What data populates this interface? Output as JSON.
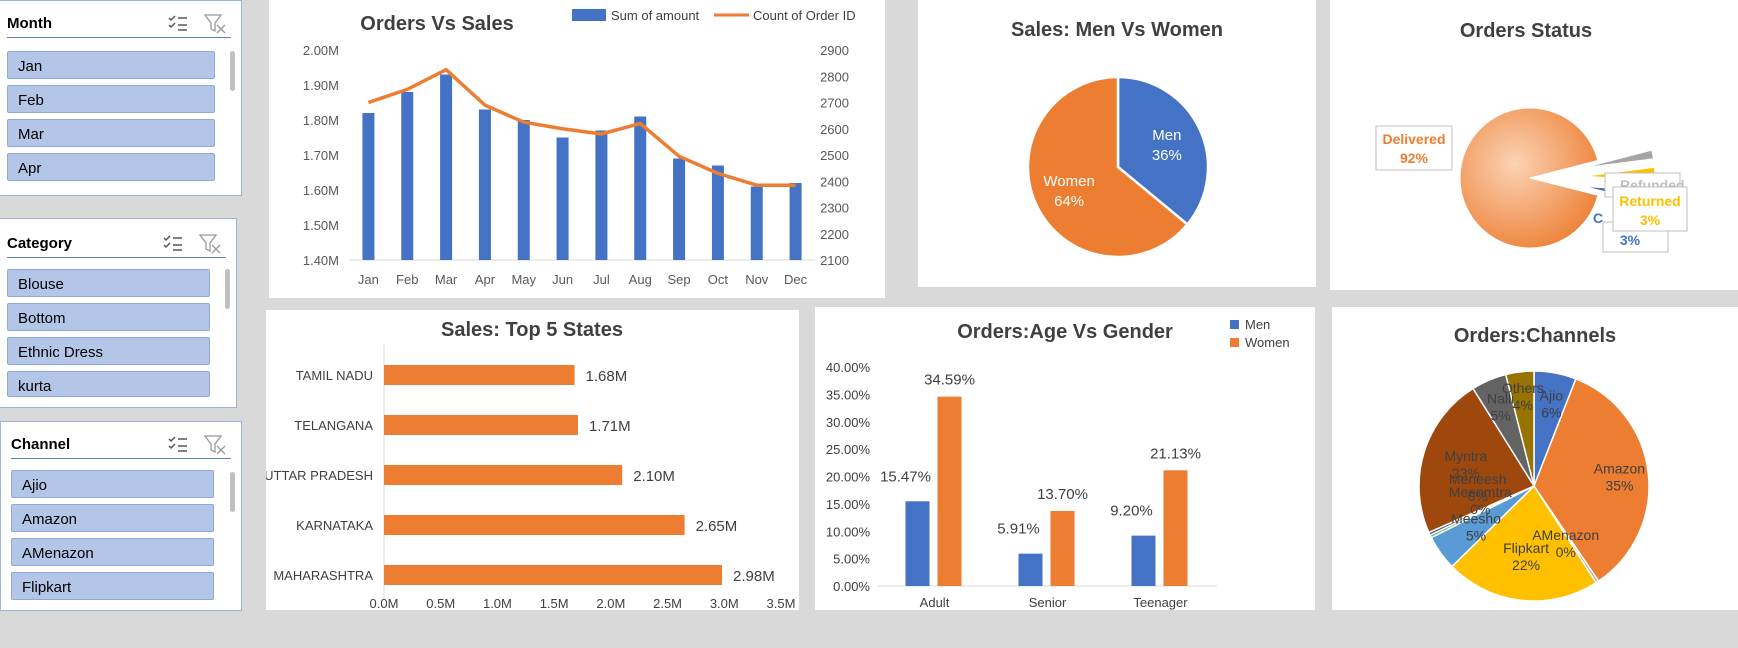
{
  "slicers": {
    "month": {
      "title": "Month",
      "items": [
        "Jan",
        "Feb",
        "Mar",
        "Apr"
      ]
    },
    "category": {
      "title": "Category",
      "items": [
        "Blouse",
        "Bottom",
        "Ethnic Dress",
        "kurta"
      ]
    },
    "channel": {
      "title": "Channel",
      "items": [
        "Ajio",
        "Amazon",
        "AMenazon",
        "Flipkart"
      ]
    },
    "icons": {
      "multi_select": "multi-select-icon",
      "clear_filter": "clear-filter-icon"
    }
  },
  "colors": {
    "blue": "#4472c4",
    "orange": "#ed7d31",
    "gold": "#ffc000",
    "gray": "#a5a5a5",
    "dark_orange": "#9e480e",
    "light_blue": "#5b9bd5",
    "dark_gray": "#636363",
    "olive": "#997300"
  },
  "chart_data": [
    {
      "id": "orders_vs_sales",
      "type": "bar+line",
      "title": "Orders Vs Sales",
      "categories": [
        "Jan",
        "Feb",
        "Mar",
        "Apr",
        "May",
        "Jun",
        "Jul",
        "Aug",
        "Sep",
        "Oct",
        "Nov",
        "Dec"
      ],
      "series": [
        {
          "name": "Sum of amount",
          "type": "bar",
          "axis": "left",
          "values": [
            1.82,
            1.88,
            1.93,
            1.83,
            1.8,
            1.75,
            1.77,
            1.81,
            1.69,
            1.67,
            1.61,
            1.62
          ]
        },
        {
          "name": "Count of Order ID",
          "type": "line",
          "axis": "right",
          "values": [
            2700,
            2750,
            2825,
            2690,
            2625,
            2600,
            2580,
            2620,
            2495,
            2430,
            2385,
            2385
          ]
        }
      ],
      "y_left": {
        "ticks": [
          "1.40M",
          "1.50M",
          "1.60M",
          "1.70M",
          "1.80M",
          "1.90M",
          "2.00M"
        ],
        "lim": [
          1.4,
          2.0
        ]
      },
      "y_right": {
        "ticks": [
          "2100",
          "2200",
          "2300",
          "2400",
          "2500",
          "2600",
          "2700",
          "2800",
          "2900"
        ],
        "lim": [
          2100,
          2900
        ]
      },
      "legend": "top-right"
    },
    {
      "id": "sales_gender",
      "type": "pie",
      "title": "Sales: Men Vs Women",
      "slices": [
        {
          "label": "Men",
          "value": 36,
          "text": "36%",
          "color": "#4472c4"
        },
        {
          "label": "Women",
          "value": 64,
          "text": "64%",
          "color": "#ed7d31"
        }
      ]
    },
    {
      "id": "orders_status",
      "type": "pie",
      "title": "Orders Status",
      "slices": [
        {
          "label": "Delivered",
          "value": 92,
          "text": "92%",
          "color": "#ed7d31"
        },
        {
          "label": "Refunded",
          "value": 2,
          "text": "",
          "color": "#a5a5a5"
        },
        {
          "label": "Returned",
          "value": 3,
          "text": "3%",
          "color": "#ffc000"
        },
        {
          "label": "C",
          "value": 3,
          "text": "3%",
          "color": "#4472c4"
        }
      ]
    },
    {
      "id": "top5_states",
      "type": "bar",
      "orientation": "horizontal",
      "title": "Sales: Top 5 States",
      "categories": [
        "TAMIL NADU",
        "TELANGANA",
        "UTTAR PRADESH",
        "KARNATAKA",
        "MAHARASHTRA"
      ],
      "values": [
        1.68,
        1.71,
        2.1,
        2.65,
        2.98
      ],
      "labels": [
        "1.68M",
        "1.71M",
        "2.10M",
        "2.65M",
        "2.98M"
      ],
      "x_ticks": [
        "0.0M",
        "0.5M",
        "1.0M",
        "1.5M",
        "2.0M",
        "2.5M",
        "3.0M",
        "3.5M"
      ],
      "xlim": [
        0,
        3.5
      ]
    },
    {
      "id": "age_gender",
      "type": "bar",
      "title": "Orders:Age Vs Gender",
      "categories": [
        "Adult",
        "Senior",
        "Teenager"
      ],
      "series": [
        {
          "name": "Men",
          "values": [
            15.47,
            5.91,
            9.2
          ],
          "labels": [
            "15.47%",
            "5.91%",
            "9.20%"
          ]
        },
        {
          "name": "Women",
          "values": [
            34.59,
            13.7,
            21.13
          ],
          "labels": [
            "34.59%",
            "13.70%",
            "21.13%"
          ]
        }
      ],
      "y_ticks": [
        "0.00%",
        "5.00%",
        "10.00%",
        "15.00%",
        "20.00%",
        "25.00%",
        "30.00%",
        "35.00%",
        "40.00%"
      ],
      "ylim": [
        0,
        40
      ],
      "legend": "top-right"
    },
    {
      "id": "channels",
      "type": "pie",
      "title": "Orders:Channels",
      "slices": [
        {
          "label": "Ajio",
          "value": 6,
          "text": "6%",
          "color": "#4472c4"
        },
        {
          "label": "Amazon",
          "value": 35,
          "text": "35%",
          "color": "#ed7d31"
        },
        {
          "label": "AMenazon",
          "value": 0.4,
          "text": "0%",
          "color": "#a5a5a5"
        },
        {
          "label": "Flipkart",
          "value": 22,
          "text": "22%",
          "color": "#ffc000"
        },
        {
          "label": "Meesho",
          "value": 5,
          "text": "5%",
          "color": "#5b9bd5"
        },
        {
          "label": "Meenmtra",
          "value": 0.4,
          "text": "0%",
          "color": "#70ad47"
        },
        {
          "label": "Meneesh",
          "value": 0.4,
          "text": "0%",
          "color": "#264478"
        },
        {
          "label": "Myntra",
          "value": 23,
          "text": "23%",
          "color": "#9e480e"
        },
        {
          "label": "Nalli",
          "value": 5,
          "text": "5%",
          "color": "#636363"
        },
        {
          "label": "Others",
          "value": 4,
          "text": "4%",
          "color": "#997300"
        }
      ]
    }
  ]
}
